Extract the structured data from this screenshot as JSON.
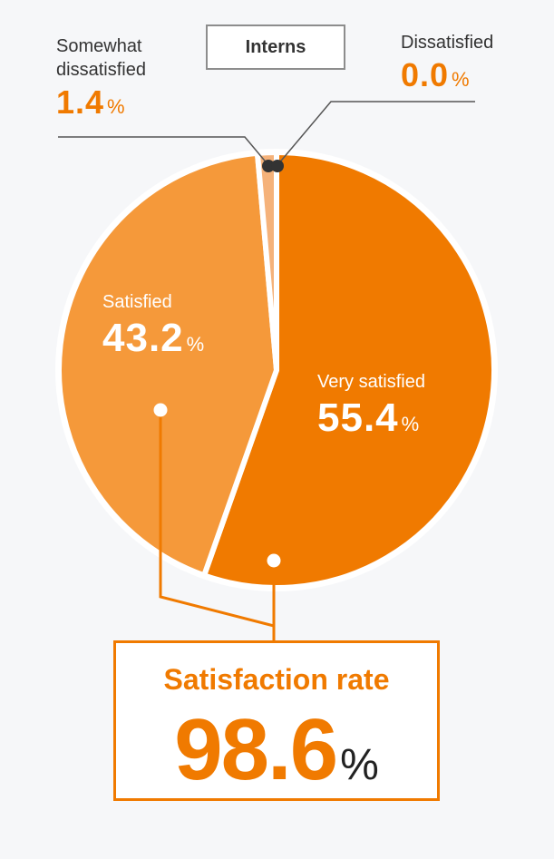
{
  "panel": {
    "title": "Interns"
  },
  "chart_data": {
    "type": "pie",
    "title": "Interns",
    "slices": [
      {
        "label": "Very satisfied",
        "value": 55.4,
        "color": "#f07a00"
      },
      {
        "label": "Satisfied",
        "value": 43.2,
        "color": "#f5993a"
      },
      {
        "label": "Somewhat dissatisfied",
        "value": 1.4,
        "color": "#f5b27a"
      },
      {
        "label": "Dissatisfied",
        "value": 0.0,
        "color": "#f07a00"
      }
    ],
    "unit": "%",
    "summary": {
      "label": "Satisfaction rate",
      "value": "98.6",
      "unit": "%"
    }
  },
  "labels": {
    "very_satisfied": {
      "name": "Very satisfied",
      "value": "55.4",
      "unit": "%"
    },
    "satisfied": {
      "name": "Satisfied",
      "value": "43.2",
      "unit": "%"
    },
    "somewhat_dissatisfied": {
      "name_line1": "Somewhat",
      "name_line2": "dissatisfied",
      "value": "1.4",
      "unit": "%"
    },
    "dissatisfied": {
      "name": "Dissatisfied",
      "value": "0.0",
      "unit": "%"
    }
  },
  "colors": {
    "accent": "#f07a00",
    "slice_light": "#f5993a",
    "slice_pale": "#f5b27a",
    "marker": "#333333"
  }
}
